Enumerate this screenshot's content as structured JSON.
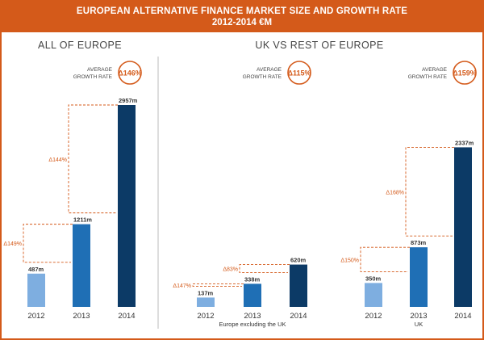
{
  "header": {
    "title_line1": "EUROPEAN ALTERNATIVE FINANCE MARKET SIZE AND GROWTH RATE",
    "title_line2": "2012-2014 €M"
  },
  "colors": {
    "accent": "#d45a1a",
    "bar_2012": "#7eaee0",
    "bar_2013": "#1f6fb5",
    "bar_2014": "#0c3a66",
    "text": "#333333"
  },
  "chart_data": [
    {
      "type": "bar",
      "title": "ALL OF EUROPE",
      "categories": [
        "2012",
        "2013",
        "2014"
      ],
      "values": [
        487,
        1211,
        2957
      ],
      "value_labels": [
        "487m",
        "1211m",
        "2957m"
      ],
      "growth_labels": [
        "Δ149%",
        "Δ144%"
      ],
      "avg_label": "AVERAGE\nGROWTH RATE",
      "avg_label_lines": [
        "AVERAGE",
        "GROWTH RATE"
      ],
      "avg_value": "Δ146%",
      "xlabel": "",
      "unit": "€m"
    },
    {
      "type": "bar",
      "title": "UK VS REST OF EUROPE",
      "subtitle": "Europe excluding the UK",
      "categories": [
        "2012",
        "2013",
        "2014"
      ],
      "values": [
        137,
        338,
        620
      ],
      "value_labels": [
        "137m",
        "338m",
        "620m"
      ],
      "growth_labels": [
        "Δ147%",
        "Δ83%"
      ],
      "avg_label_lines": [
        "AVERAGE",
        "GROWTH RATE"
      ],
      "avg_value": "Δ115%",
      "xlabel": "Europe excluding the UK",
      "unit": "€m"
    },
    {
      "type": "bar",
      "subtitle": "UK",
      "categories": [
        "2012",
        "2013",
        "2014"
      ],
      "values": [
        350,
        873,
        2337
      ],
      "value_labels": [
        "350m",
        "873m",
        "2337m"
      ],
      "growth_labels": [
        "Δ150%",
        "Δ168%"
      ],
      "avg_label_lines": [
        "AVERAGE",
        "GROWTH RATE"
      ],
      "avg_value": "Δ159%",
      "xlabel": "UK",
      "unit": "€m"
    }
  ]
}
